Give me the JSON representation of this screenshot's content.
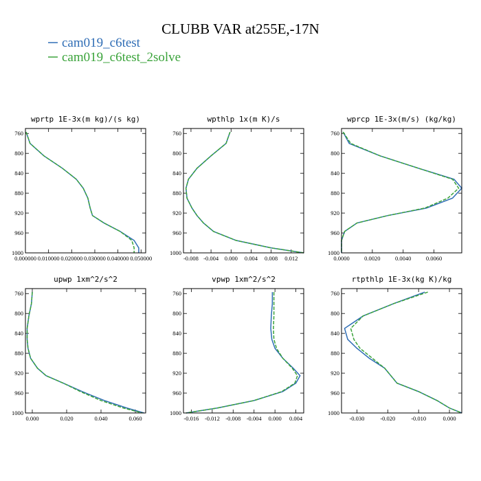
{
  "title": "CLUBB VAR at255E,-17N",
  "chart_data": [
    {
      "type": "line",
      "title": "wprtp  1E-3x(m kg)/(s kg)",
      "y": [
        757,
        780,
        805,
        830,
        852,
        870,
        890,
        910,
        925,
        940,
        957,
        975,
        990,
        1000
      ],
      "ylim": [
        1000,
        750
      ],
      "yticks": [
        760,
        800,
        840,
        880,
        920,
        960,
        1000
      ],
      "xlim": [
        0,
        0.052
      ],
      "xticks": [
        {
          "value": 0,
          "label": "0.000000"
        },
        {
          "value": 0.01,
          "label": "0.010000"
        },
        {
          "value": 0.02,
          "label": "0.020000"
        },
        {
          "value": 0.03,
          "label": "0.030000"
        },
        {
          "value": 0.04,
          "label": "0.040000"
        },
        {
          "value": 0.05,
          "label": "0.050000"
        }
      ],
      "grid": false,
      "series": [
        {
          "name": "cam019_c6test",
          "color": "#2f6db5",
          "linestyle": "solid",
          "values": [
            0.0003,
            0.002,
            0.008,
            0.016,
            0.022,
            0.025,
            0.027,
            0.028,
            0.029,
            0.034,
            0.041,
            0.047,
            0.049,
            0.049
          ]
        },
        {
          "name": "cam019_c6test_2solve",
          "color": "#3aa33a",
          "linestyle": "dashed",
          "values": [
            0.0003,
            0.002,
            0.008,
            0.016,
            0.022,
            0.025,
            0.027,
            0.028,
            0.029,
            0.034,
            0.041,
            0.046,
            0.047,
            0.047
          ]
        }
      ]
    },
    {
      "type": "line",
      "title": "wpthlp  1x(m K)/s",
      "y": [
        757,
        780,
        805,
        830,
        852,
        870,
        890,
        910,
        925,
        940,
        957,
        975,
        990,
        1000
      ],
      "ylim": [
        1000,
        750
      ],
      "yticks": [
        760,
        800,
        840,
        880,
        920,
        960,
        1000
      ],
      "xlim": [
        -0.0095,
        0.0145
      ],
      "xticks": [
        {
          "value": -0.008,
          "label": "-0.008"
        },
        {
          "value": -0.004,
          "label": "-0.004"
        },
        {
          "value": 0,
          "label": "0.000"
        },
        {
          "value": 0.004,
          "label": "0.004"
        },
        {
          "value": 0.008,
          "label": "0.008"
        },
        {
          "value": 0.012,
          "label": "0.012"
        }
      ],
      "grid": false,
      "series": [
        {
          "name": "cam019_c6test",
          "color": "#2f6db5",
          "linestyle": "solid",
          "values": [
            -0.0002,
            -0.001,
            -0.004,
            -0.0068,
            -0.0085,
            -0.009,
            -0.0088,
            -0.0078,
            -0.0068,
            -0.0055,
            -0.0035,
            0.001,
            0.008,
            0.0145
          ]
        },
        {
          "name": "cam019_c6test_2solve",
          "color": "#3aa33a",
          "linestyle": "dashed",
          "values": [
            -0.0002,
            -0.001,
            -0.004,
            -0.0068,
            -0.0085,
            -0.009,
            -0.0088,
            -0.0078,
            -0.0068,
            -0.0055,
            -0.0035,
            0.001,
            0.008,
            0.0145
          ]
        }
      ]
    },
    {
      "type": "line",
      "title": "wprcp  1E-3x(m/s) (kg/kg)",
      "y": [
        757,
        780,
        805,
        830,
        852,
        870,
        890,
        910,
        925,
        940,
        957,
        975,
        990,
        1000
      ],
      "ylim": [
        1000,
        750
      ],
      "yticks": [
        760,
        800,
        840,
        880,
        920,
        960,
        1000
      ],
      "xlim": [
        0,
        0.0078
      ],
      "xticks": [
        {
          "value": 0,
          "label": "0.0000"
        },
        {
          "value": 0.002,
          "label": "0.0020"
        },
        {
          "value": 0.004,
          "label": "0.0040"
        },
        {
          "value": 0.006,
          "label": "0.0060"
        }
      ],
      "grid": false,
      "series": [
        {
          "name": "cam019_c6test",
          "color": "#2f6db5",
          "linestyle": "solid",
          "values": [
            0.0001,
            0.0005,
            0.0025,
            0.005,
            0.0073,
            0.0078,
            0.0072,
            0.0055,
            0.003,
            0.001,
            0.0002,
            0,
            0,
            0
          ]
        },
        {
          "name": "cam019_c6test_2solve",
          "color": "#3aa33a",
          "linestyle": "dashed",
          "values": [
            0.0001,
            0.0006,
            0.0025,
            0.005,
            0.0072,
            0.0076,
            0.0069,
            0.0054,
            0.003,
            0.001,
            0.0002,
            0,
            0,
            0
          ]
        }
      ]
    },
    {
      "type": "line",
      "title": "upwp  1xm^2/s^2",
      "y": [
        757,
        780,
        805,
        830,
        852,
        870,
        890,
        910,
        925,
        940,
        957,
        975,
        990,
        1000
      ],
      "ylim": [
        1000,
        750
      ],
      "yticks": [
        760,
        800,
        840,
        880,
        920,
        960,
        1000
      ],
      "xlim": [
        -0.004,
        0.066
      ],
      "xticks": [
        {
          "value": 0,
          "label": "0.000"
        },
        {
          "value": 0.02,
          "label": "0.020"
        },
        {
          "value": 0.04,
          "label": "0.040"
        },
        {
          "value": 0.06,
          "label": "0.060"
        }
      ],
      "grid": false,
      "series": [
        {
          "name": "cam019_c6test",
          "color": "#2f6db5",
          "linestyle": "solid",
          "values": [
            0,
            -0.0005,
            -0.002,
            -0.003,
            -0.003,
            -0.0025,
            -0.001,
            0.003,
            0.008,
            0.018,
            0.029,
            0.042,
            0.055,
            0.065
          ]
        },
        {
          "name": "cam019_c6test_2solve",
          "color": "#3aa33a",
          "linestyle": "dashed",
          "values": [
            0,
            -0.0005,
            -0.002,
            -0.003,
            -0.003,
            -0.0025,
            -0.001,
            0.003,
            0.008,
            0.018,
            0.028,
            0.04,
            0.053,
            0.064
          ]
        }
      ]
    },
    {
      "type": "line",
      "title": "vpwp  1xm^2/s^2",
      "y": [
        757,
        780,
        805,
        830,
        852,
        870,
        890,
        910,
        925,
        940,
        957,
        975,
        990,
        1000
      ],
      "ylim": [
        1000,
        750
      ],
      "yticks": [
        760,
        800,
        840,
        880,
        920,
        960,
        1000
      ],
      "xlim": [
        -0.0175,
        0.0055
      ],
      "xticks": [
        {
          "value": -0.016,
          "label": "-0.016"
        },
        {
          "value": -0.012,
          "label": "-0.012"
        },
        {
          "value": -0.008,
          "label": "-0.008"
        },
        {
          "value": -0.004,
          "label": "-0.004"
        },
        {
          "value": 0,
          "label": "0.000"
        },
        {
          "value": 0.004,
          "label": "0.004"
        }
      ],
      "grid": false,
      "series": [
        {
          "name": "cam019_c6test",
          "color": "#2f6db5",
          "linestyle": "solid",
          "values": [
            -0.0005,
            -0.0005,
            -0.0007,
            -0.0008,
            -0.0006,
            0,
            0.0015,
            0.0035,
            0.0048,
            0.004,
            0.0015,
            -0.004,
            -0.011,
            -0.017
          ]
        },
        {
          "name": "cam019_c6test_2solve",
          "color": "#3aa33a",
          "linestyle": "dashed",
          "values": [
            -0.0002,
            -0.0002,
            -0.0002,
            -0.0003,
            -0.0002,
            0.0003,
            0.0015,
            0.0033,
            0.0043,
            0.0038,
            0.0013,
            -0.004,
            -0.011,
            -0.017
          ]
        }
      ]
    },
    {
      "type": "line",
      "title": "rtpthlp  1E-3x(kg K)/kg",
      "y": [
        757,
        780,
        805,
        830,
        852,
        870,
        890,
        910,
        925,
        940,
        957,
        975,
        990,
        1000
      ],
      "ylim": [
        1000,
        750
      ],
      "yticks": [
        760,
        800,
        840,
        880,
        920,
        960,
        1000
      ],
      "xlim": [
        -0.035,
        0.004
      ],
      "xticks": [
        {
          "value": -0.03,
          "label": "-0.030"
        },
        {
          "value": -0.02,
          "label": "-0.020"
        },
        {
          "value": -0.01,
          "label": "-0.010"
        },
        {
          "value": 0,
          "label": "0.000"
        }
      ],
      "grid": false,
      "series": [
        {
          "name": "cam019_c6test",
          "color": "#2f6db5",
          "linestyle": "solid",
          "values": [
            -0.008,
            -0.018,
            -0.028,
            -0.034,
            -0.033,
            -0.03,
            -0.026,
            -0.021,
            -0.019,
            -0.017,
            -0.01,
            -0.004,
            0,
            0.004
          ]
        },
        {
          "name": "cam019_c6test_2solve",
          "color": "#3aa33a",
          "linestyle": "dashed",
          "values": [
            -0.007,
            -0.018,
            -0.028,
            -0.032,
            -0.031,
            -0.029,
            -0.025,
            -0.021,
            -0.019,
            -0.017,
            -0.01,
            -0.004,
            0,
            0.004
          ]
        }
      ]
    }
  ]
}
